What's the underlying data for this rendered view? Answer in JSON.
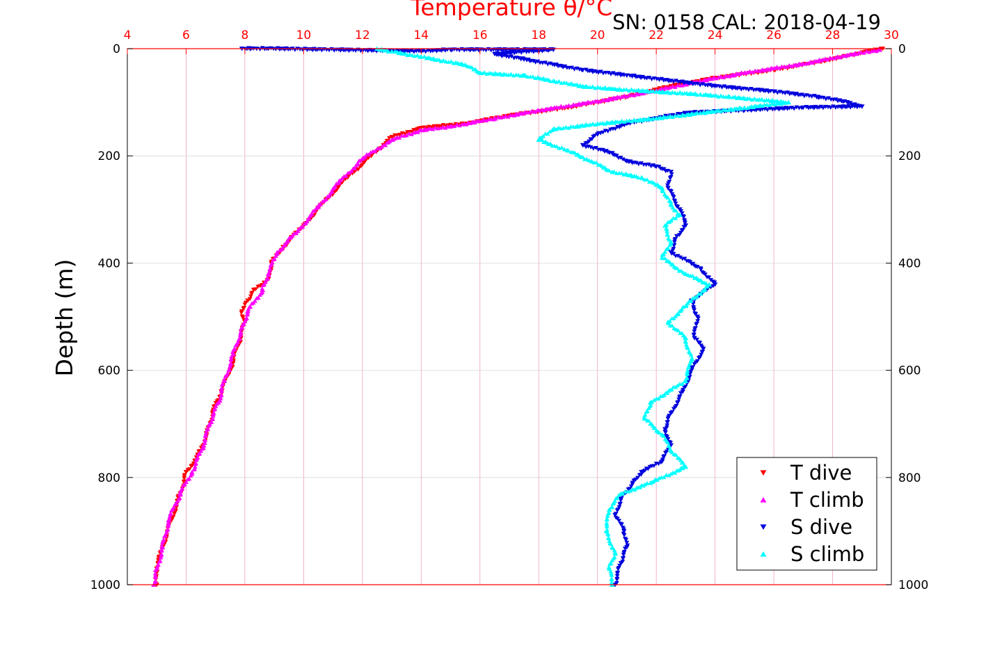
{
  "header": {
    "title": "Temperature θ/°C",
    "serial": "SN: 0158  CAL: 2018-04-19"
  },
  "colors": {
    "t_dive": "#ff0000",
    "t_climb": "#ff00ff",
    "s_dive": "#0000dd",
    "s_climb": "#00ffff",
    "top_axis": "#ff0000",
    "grid_vertical": "#f0a0c0",
    "grid_horizontal": "#d8d8d8"
  },
  "legend": {
    "items": [
      {
        "label": "T dive",
        "marker": "down-triangle",
        "color": "#ff0000"
      },
      {
        "label": "T climb",
        "marker": "up-triangle",
        "color": "#ff00ff"
      },
      {
        "label": "S dive",
        "marker": "down-triangle",
        "color": "#0000dd"
      },
      {
        "label": "S climb",
        "marker": "up-triangle",
        "color": "#00ffff"
      }
    ]
  },
  "chart_data": {
    "type": "scatter",
    "title": "Temperature θ/°C",
    "ylabel": "Depth (m)",
    "xlim": [
      4,
      30
    ],
    "ylim": [
      0,
      1000
    ],
    "y_reversed": true,
    "x_ticks": [
      "4",
      "6",
      "8",
      "10",
      "12",
      "14",
      "16",
      "18",
      "20",
      "22",
      "24",
      "26",
      "28",
      "30"
    ],
    "y_ticks": [
      "0",
      "200",
      "400",
      "600",
      "800",
      "1000"
    ],
    "grid": true,
    "legend_position": "bottom-right",
    "series": [
      {
        "name": "T dive",
        "marker": "down-triangle",
        "points": [
          [
            29.7,
            0
          ],
          [
            29.2,
            5
          ],
          [
            28.0,
            20
          ],
          [
            26.0,
            40
          ],
          [
            24.0,
            55
          ],
          [
            22.5,
            70
          ],
          [
            21.0,
            90
          ],
          [
            19.0,
            110
          ],
          [
            17.0,
            125
          ],
          [
            15.5,
            140
          ],
          [
            14.0,
            148
          ],
          [
            13.0,
            165
          ],
          [
            12.3,
            200
          ],
          [
            11.5,
            240
          ],
          [
            10.8,
            280
          ],
          [
            10.0,
            330
          ],
          [
            9.3,
            370
          ],
          [
            8.9,
            400
          ],
          [
            8.8,
            430
          ],
          [
            8.3,
            450
          ],
          [
            8.1,
            470
          ],
          [
            7.9,
            490
          ],
          [
            8.0,
            510
          ],
          [
            7.8,
            550
          ],
          [
            7.5,
            600
          ],
          [
            7.2,
            640
          ],
          [
            6.9,
            680
          ],
          [
            6.7,
            720
          ],
          [
            6.4,
            760
          ],
          [
            6.0,
            790
          ],
          [
            5.8,
            830
          ],
          [
            5.5,
            880
          ],
          [
            5.2,
            930
          ],
          [
            5.0,
            970
          ],
          [
            5.0,
            1000
          ]
        ]
      },
      {
        "name": "T climb",
        "marker": "up-triangle",
        "points": [
          [
            29.6,
            2
          ],
          [
            28.5,
            12
          ],
          [
            27.0,
            28
          ],
          [
            25.0,
            45
          ],
          [
            23.5,
            60
          ],
          [
            22.0,
            78
          ],
          [
            20.0,
            98
          ],
          [
            18.0,
            115
          ],
          [
            16.5,
            130
          ],
          [
            15.0,
            145
          ],
          [
            14.0,
            152
          ],
          [
            13.0,
            170
          ],
          [
            12.0,
            205
          ],
          [
            11.2,
            250
          ],
          [
            10.5,
            295
          ],
          [
            9.8,
            340
          ],
          [
            9.1,
            380
          ],
          [
            8.8,
            420
          ],
          [
            8.6,
            450
          ],
          [
            8.1,
            490
          ],
          [
            7.9,
            520
          ],
          [
            7.6,
            570
          ],
          [
            7.3,
            620
          ],
          [
            7.1,
            660
          ],
          [
            6.8,
            700
          ],
          [
            6.6,
            740
          ],
          [
            6.2,
            790
          ],
          [
            5.8,
            830
          ],
          [
            5.4,
            880
          ],
          [
            5.2,
            930
          ],
          [
            5.0,
            970
          ],
          [
            4.9,
            1000
          ]
        ]
      },
      {
        "name": "S dive",
        "marker": "down-triangle",
        "points": [
          [
            7.9,
            0
          ],
          [
            8.4,
            0
          ],
          [
            8.8,
            0
          ],
          [
            14.0,
            5
          ],
          [
            15.0,
            2
          ],
          [
            17.0,
            2
          ],
          [
            18.5,
            2
          ],
          [
            16.5,
            10
          ],
          [
            17.5,
            20
          ],
          [
            19.5,
            40
          ],
          [
            21.0,
            50
          ],
          [
            22.5,
            60
          ],
          [
            24.0,
            70
          ],
          [
            26.0,
            80
          ],
          [
            27.5,
            90
          ],
          [
            28.5,
            100
          ],
          [
            29.0,
            108
          ],
          [
            27.0,
            110
          ],
          [
            25.0,
            115
          ],
          [
            23.0,
            120
          ],
          [
            22.0,
            130
          ],
          [
            21.0,
            140
          ],
          [
            20.0,
            160
          ],
          [
            19.5,
            180
          ],
          [
            20.5,
            195
          ],
          [
            21.0,
            210
          ],
          [
            22.0,
            220
          ],
          [
            22.5,
            230
          ],
          [
            22.4,
            260
          ],
          [
            22.8,
            300
          ],
          [
            23.0,
            330
          ],
          [
            22.7,
            350
          ],
          [
            22.5,
            380
          ],
          [
            23.5,
            410
          ],
          [
            24.0,
            440
          ],
          [
            23.2,
            470
          ],
          [
            23.4,
            500
          ],
          [
            23.3,
            540
          ],
          [
            23.6,
            560
          ],
          [
            23.2,
            600
          ],
          [
            22.9,
            640
          ],
          [
            22.5,
            680
          ],
          [
            22.3,
            710
          ],
          [
            22.5,
            740
          ],
          [
            22.2,
            770
          ],
          [
            21.5,
            790
          ],
          [
            21.2,
            810
          ],
          [
            20.8,
            840
          ],
          [
            20.6,
            870
          ],
          [
            20.9,
            900
          ],
          [
            21.0,
            930
          ],
          [
            20.8,
            960
          ],
          [
            20.6,
            1000
          ]
        ]
      },
      {
        "name": "S climb",
        "marker": "up-triangle",
        "points": [
          [
            12.5,
            0
          ],
          [
            13.0,
            5
          ],
          [
            14.0,
            15
          ],
          [
            15.5,
            30
          ],
          [
            16.0,
            45
          ],
          [
            17.5,
            50
          ],
          [
            18.5,
            60
          ],
          [
            19.5,
            70
          ],
          [
            20.5,
            75
          ],
          [
            22.0,
            80
          ],
          [
            23.5,
            85
          ],
          [
            24.5,
            90
          ],
          [
            25.5,
            95
          ],
          [
            26.5,
            100
          ],
          [
            25.0,
            110
          ],
          [
            23.5,
            120
          ],
          [
            22.0,
            130
          ],
          [
            20.0,
            140
          ],
          [
            18.5,
            150
          ],
          [
            18.0,
            170
          ],
          [
            19.0,
            190
          ],
          [
            19.8,
            210
          ],
          [
            20.5,
            230
          ],
          [
            21.5,
            240
          ],
          [
            22.2,
            260
          ],
          [
            22.5,
            290
          ],
          [
            22.8,
            310
          ],
          [
            22.3,
            330
          ],
          [
            22.5,
            360
          ],
          [
            22.2,
            390
          ],
          [
            23.0,
            420
          ],
          [
            23.8,
            440
          ],
          [
            23.0,
            480
          ],
          [
            22.4,
            510
          ],
          [
            23.0,
            540
          ],
          [
            23.2,
            580
          ],
          [
            23.0,
            620
          ],
          [
            21.8,
            660
          ],
          [
            21.6,
            690
          ],
          [
            22.2,
            720
          ],
          [
            22.5,
            750
          ],
          [
            23.0,
            780
          ],
          [
            21.8,
            810
          ],
          [
            20.8,
            830
          ],
          [
            20.4,
            860
          ],
          [
            20.3,
            900
          ],
          [
            20.6,
            940
          ],
          [
            20.4,
            970
          ],
          [
            20.5,
            1000
          ]
        ]
      }
    ]
  }
}
